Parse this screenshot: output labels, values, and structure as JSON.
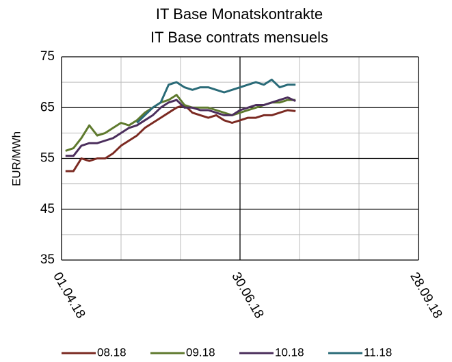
{
  "chart_data": {
    "type": "line",
    "title": "IT Base Monatskontrakte",
    "subtitle": "IT Base contrats mensuels",
    "y_label": "EUR/MWh",
    "x": [
      "2018-04-03",
      "2018-04-07",
      "2018-04-11",
      "2018-04-15",
      "2018-04-19",
      "2018-04-23",
      "2018-04-27",
      "2018-05-01",
      "2018-05-05",
      "2018-05-09",
      "2018-05-13",
      "2018-05-17",
      "2018-05-21",
      "2018-05-25",
      "2018-05-29",
      "2018-06-02",
      "2018-06-06",
      "2018-06-10",
      "2018-06-14",
      "2018-06-18",
      "2018-06-22",
      "2018-06-26",
      "2018-06-30",
      "2018-07-04",
      "2018-07-08",
      "2018-07-12",
      "2018-07-16",
      "2018-07-20",
      "2018-07-24",
      "2018-07-28"
    ],
    "series": [
      {
        "name": "08.18",
        "color": "#7b2a22",
        "values": [
          52.5,
          52.5,
          55,
          54.5,
          55,
          55,
          56,
          57.5,
          58.5,
          59.5,
          61,
          62,
          63,
          64,
          65,
          65.5,
          64,
          63.5,
          63,
          63.5,
          62.5,
          62,
          62.5,
          63,
          63,
          63.5,
          63.5,
          64,
          64.5,
          64.3
        ]
      },
      {
        "name": "09.18",
        "color": "#5f7a2e",
        "values": [
          56.5,
          57,
          59,
          61.5,
          59.5,
          60,
          61,
          62,
          61.5,
          62.5,
          64,
          65,
          66,
          66.5,
          67.5,
          65.5,
          65,
          65,
          65,
          64.5,
          64,
          63.5,
          64,
          64.5,
          65,
          65.5,
          66,
          66,
          66.5,
          66.5
        ]
      },
      {
        "name": "10.18",
        "color": "#4b2e5c",
        "values": [
          55.5,
          55.5,
          57.5,
          58,
          58,
          58.5,
          59,
          60,
          61,
          61.5,
          62.5,
          63.5,
          65,
          66,
          66.5,
          65,
          65,
          64.5,
          64.5,
          64,
          63.5,
          63.5,
          64.5,
          65,
          65.5,
          65.5,
          66,
          66.5,
          67,
          66.3
        ]
      },
      {
        "name": "11.18",
        "color": "#2a6b78",
        "values": [
          null,
          null,
          null,
          null,
          null,
          null,
          null,
          null,
          null,
          62,
          63.5,
          65,
          66,
          69.5,
          70,
          69,
          68.5,
          69,
          69,
          68.5,
          68,
          68.5,
          69,
          69.5,
          70,
          69.5,
          70.5,
          69,
          69.5,
          69.5
        ]
      }
    ],
    "xlim": [
      "2018-04-01",
      "2018-09-28"
    ],
    "xticks": [
      {
        "value": "2018-04-01",
        "label": "01.04.18"
      },
      {
        "value": "2018-06-30",
        "label": "30.06.18"
      },
      {
        "value": "2018-09-28",
        "label": "28.09.18"
      }
    ],
    "xminor_ticks": [
      "2018-05-01",
      "2018-05-31",
      "2018-07-30",
      "2018-08-29"
    ],
    "ylim": [
      35,
      75
    ],
    "yticks": [
      35,
      45,
      55,
      65,
      75
    ],
    "yminor_ticks": [
      40,
      50,
      60,
      70
    ],
    "grid": true,
    "legend": "bottom"
  }
}
